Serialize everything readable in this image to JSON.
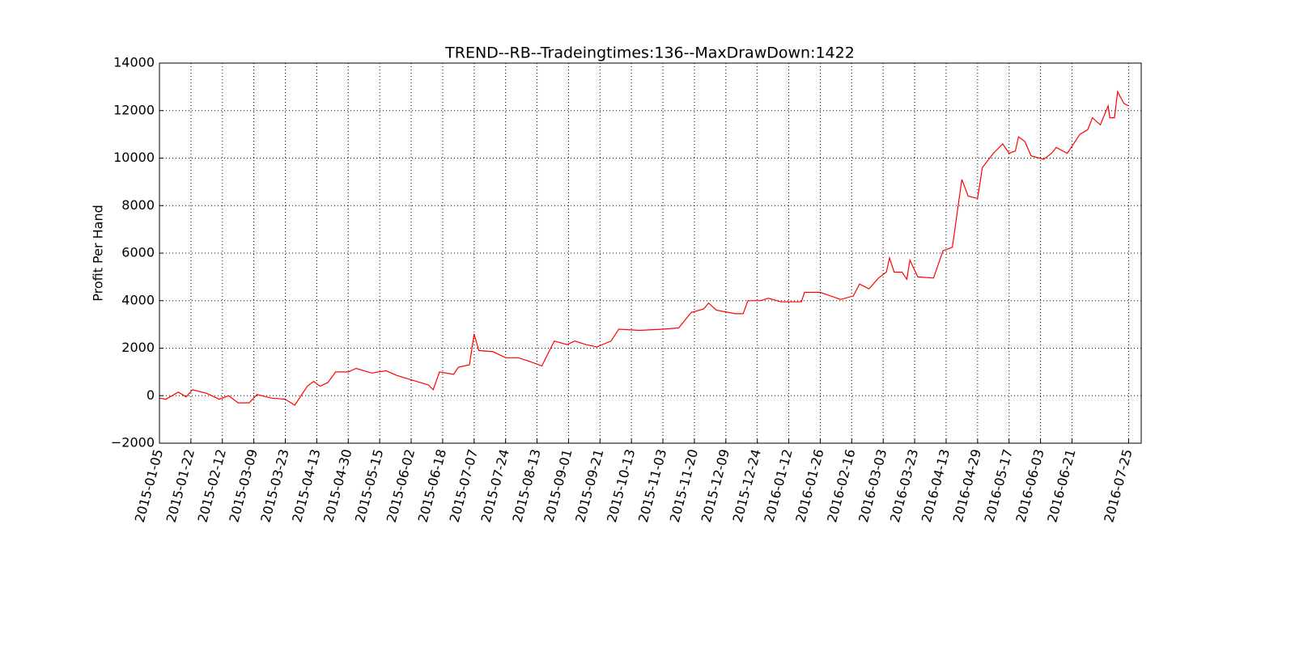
{
  "chart_data": {
    "type": "line",
    "title": "TREND--RB--Tradeingtimes:136--MaxDrawDown:1422",
    "y_label": "Profit Per Hand",
    "grid": true,
    "xlim": [
      0,
      312
    ],
    "xticks": [
      {
        "value": 0,
        "label": "2015-01-05"
      },
      {
        "value": 10,
        "label": "2015-01-22"
      },
      {
        "value": 20,
        "label": "2015-02-12"
      },
      {
        "value": 30,
        "label": "2015-03-09"
      },
      {
        "value": 40,
        "label": "2015-03-23"
      },
      {
        "value": 50,
        "label": "2015-04-13"
      },
      {
        "value": 60,
        "label": "2015-04-30"
      },
      {
        "value": 70,
        "label": "2015-05-15"
      },
      {
        "value": 80,
        "label": "2015-06-02"
      },
      {
        "value": 90,
        "label": "2015-06-18"
      },
      {
        "value": 100,
        "label": "2015-07-07"
      },
      {
        "value": 110,
        "label": "2015-07-24"
      },
      {
        "value": 120,
        "label": "2015-08-13"
      },
      {
        "value": 130,
        "label": "2015-09-01"
      },
      {
        "value": 140,
        "label": "2015-09-21"
      },
      {
        "value": 150,
        "label": "2015-10-13"
      },
      {
        "value": 160,
        "label": "2015-11-03"
      },
      {
        "value": 170,
        "label": "2015-11-20"
      },
      {
        "value": 180,
        "label": "2015-12-09"
      },
      {
        "value": 190,
        "label": "2015-12-24"
      },
      {
        "value": 200,
        "label": "2016-01-12"
      },
      {
        "value": 210,
        "label": "2016-01-26"
      },
      {
        "value": 220,
        "label": "2016-02-16"
      },
      {
        "value": 230,
        "label": "2016-03-03"
      },
      {
        "value": 240,
        "label": "2016-03-23"
      },
      {
        "value": 250,
        "label": "2016-04-13"
      },
      {
        "value": 260,
        "label": "2016-04-29"
      },
      {
        "value": 270,
        "label": "2016-05-17"
      },
      {
        "value": 280,
        "label": "2016-06-03"
      },
      {
        "value": 290,
        "label": "2016-06-21"
      },
      {
        "value": 308,
        "label": "2016-07-25"
      }
    ],
    "ylim": [
      -2000,
      14000
    ],
    "yticks": [
      {
        "value": -2000,
        "label": "−2000"
      },
      0,
      2000,
      4000,
      6000,
      8000,
      10000,
      12000,
      14000
    ],
    "x": [
      0,
      2,
      6,
      8.5,
      10.5,
      15,
      19,
      22,
      25,
      28.5,
      31,
      35.5,
      40,
      43,
      47,
      49,
      51,
      53.5,
      56,
      60,
      62.5,
      67.5,
      72,
      75.5,
      80.5,
      85.5,
      87,
      89,
      93.5,
      95,
      98.5,
      100,
      101.5,
      106,
      110,
      114,
      117.5,
      121.5,
      125.5,
      129.5,
      132,
      135.5,
      139,
      143.5,
      146,
      152.5,
      160,
      165,
      169,
      173,
      174.5,
      177,
      183,
      185.5,
      187,
      191,
      193.5,
      197.5,
      204,
      205,
      210,
      216.5,
      220.5,
      222.5,
      225.5,
      228.5,
      231,
      232,
      233.5,
      236,
      237.5,
      238.5,
      241,
      246,
      249,
      252,
      253.5,
      255,
      257,
      260,
      261.5,
      265,
      268,
      270,
      272,
      273,
      275,
      277,
      281,
      283.5,
      285,
      288.5,
      290.5,
      292.5,
      295,
      296.5,
      299,
      301.5,
      302,
      303.5,
      304.5,
      306.5,
      308
    ],
    "series": [
      {
        "color": "#ff0000",
        "values": [
          -100,
          -150,
          150,
          -50,
          250,
          100,
          -150,
          0,
          -300,
          -300,
          50,
          -100,
          -150,
          -400,
          400,
          600,
          400,
          550,
          1000,
          1000,
          1150,
          950,
          1050,
          850,
          650,
          450,
          250,
          1000,
          900,
          1200,
          1300,
          2600,
          1900,
          1850,
          1600,
          1600,
          1450,
          1250,
          2300,
          2150,
          2300,
          2150,
          2050,
          2300,
          2800,
          2750,
          2800,
          2850,
          3500,
          3650,
          3900,
          3600,
          3450,
          3450,
          4000,
          4000,
          4100,
          3950,
          3950,
          4350,
          4350,
          4050,
          4200,
          4700,
          4500,
          4950,
          5200,
          5800,
          5200,
          5200,
          4900,
          5700,
          5000,
          4950,
          6100,
          6250,
          7700,
          9100,
          8400,
          8300,
          9600,
          10200,
          10600,
          10200,
          10300,
          10900,
          10700,
          10100,
          9950,
          10200,
          10450,
          10200,
          10600,
          11000,
          11200,
          11700,
          11400,
          12200,
          11700,
          11700,
          12800,
          12300,
          12200
        ]
      }
    ]
  }
}
